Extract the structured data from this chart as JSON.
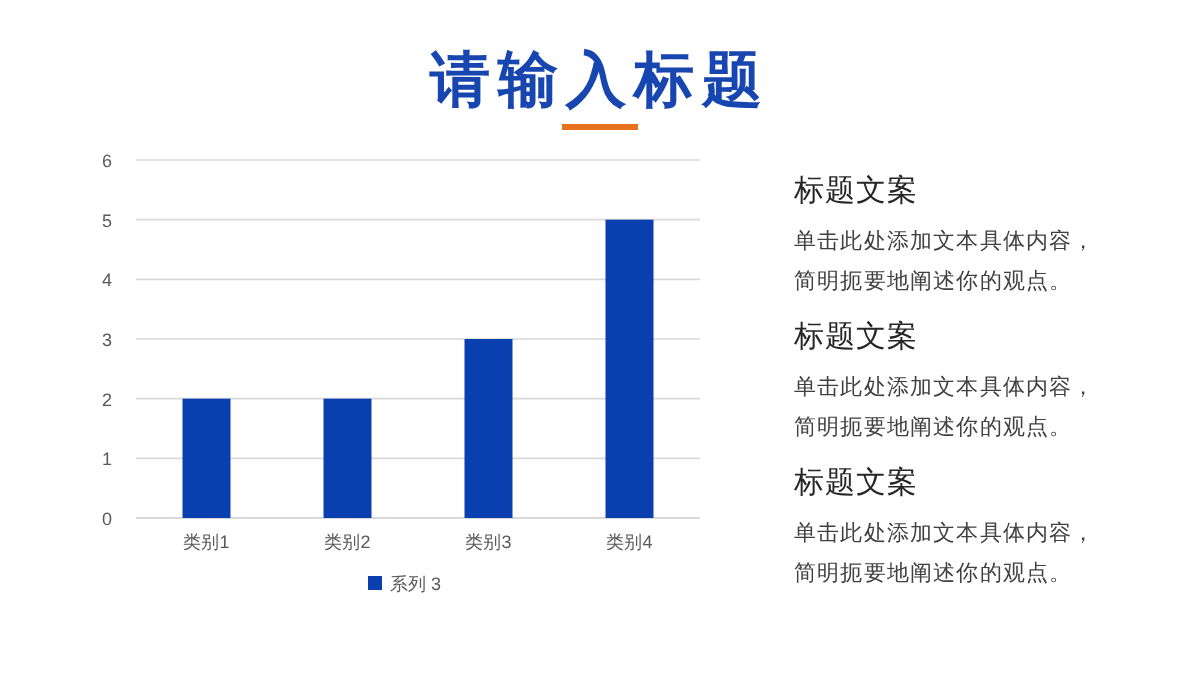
{
  "chart_data": [
    {
      "type": "bar",
      "title": "请输入标题",
      "categories": [
        "类别1",
        "类别2",
        "类别3",
        "类别4"
      ],
      "series": [
        {
          "name": "系列 3",
          "color": "#0a3fb0",
          "values": [
            2,
            2,
            3,
            5
          ]
        }
      ],
      "ylim": [
        0,
        6
      ],
      "yticks": [
        0,
        1,
        2,
        3,
        4,
        5,
        6
      ],
      "grid": "y",
      "legend": "bottom"
    },
    {
      "type": "other",
      "annotations": [
        "标题文案",
        "单击此处添加文本具体内容，",
        "简明扼要地阐述你的观点。",
        "标题文案",
        "单击此处添加文本具体内容，",
        "简明扼要地阐述你的观点。",
        "标题文案",
        "单击此处添加文本具体内容，",
        "简明扼要地阐述你的观点。"
      ]
    }
  ]
}
